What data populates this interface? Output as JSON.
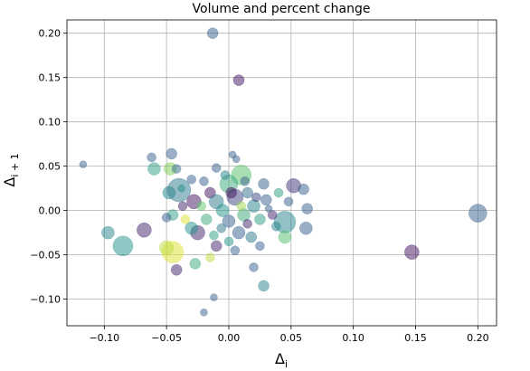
{
  "chart_data": {
    "type": "scatter",
    "title": "Volume and percent change",
    "xlabel_main": "Δ",
    "xlabel_sub": "i",
    "ylabel_main": "Δ",
    "ylabel_sub": "i + 1",
    "xlim": [
      -0.13,
      0.215
    ],
    "ylim": [
      -0.13,
      0.215
    ],
    "xticks": [
      -0.1,
      -0.05,
      0.0,
      0.05,
      0.1,
      0.15,
      0.2
    ],
    "xtick_labels": [
      "−0.10",
      "−0.05",
      "0.00",
      "0.05",
      "0.10",
      "0.15",
      "0.20"
    ],
    "yticks": [
      -0.1,
      -0.05,
      0.0,
      0.05,
      0.1,
      0.15,
      0.2
    ],
    "ytick_labels": [
      "−0.10",
      "−0.05",
      "0.00",
      "0.05",
      "0.10",
      "0.15",
      "0.20"
    ],
    "grid": true,
    "colormap": [
      "#440154",
      "#3b528b",
      "#21918c",
      "#5ec962",
      "#fde725"
    ],
    "points": [
      {
        "x": -0.013,
        "y": 0.2,
        "size": 6,
        "color": 0.3
      },
      {
        "x": 0.008,
        "y": 0.147,
        "size": 6,
        "color": 0.05
      },
      {
        "x": -0.117,
        "y": 0.052,
        "size": 4,
        "color": 0.3
      },
      {
        "x": 0.2,
        "y": -0.003,
        "size": 10,
        "color": 0.3
      },
      {
        "x": 0.147,
        "y": -0.047,
        "size": 8,
        "color": 0.05
      },
      {
        "x": -0.085,
        "y": -0.04,
        "size": 11,
        "color": 0.5
      },
      {
        "x": -0.097,
        "y": -0.025,
        "size": 7,
        "color": 0.45
      },
      {
        "x": -0.068,
        "y": -0.022,
        "size": 8,
        "color": 0.1
      },
      {
        "x": -0.04,
        "y": 0.023,
        "size": 13,
        "color": 0.4
      },
      {
        "x": -0.045,
        "y": -0.047,
        "size": 12,
        "color": 0.95
      },
      {
        "x": -0.05,
        "y": -0.042,
        "size": 8,
        "color": 0.9
      },
      {
        "x": -0.042,
        "y": -0.067,
        "size": 6,
        "color": 0.1
      },
      {
        "x": -0.027,
        "y": -0.06,
        "size": 6,
        "color": 0.6
      },
      {
        "x": -0.015,
        "y": -0.053,
        "size": 5,
        "color": 0.9
      },
      {
        "x": -0.012,
        "y": -0.098,
        "size": 4,
        "color": 0.3
      },
      {
        "x": -0.02,
        "y": -0.115,
        "size": 4,
        "color": 0.3
      },
      {
        "x": 0.028,
        "y": -0.085,
        "size": 6,
        "color": 0.45
      },
      {
        "x": 0.02,
        "y": -0.064,
        "size": 5,
        "color": 0.3
      },
      {
        "x": -0.062,
        "y": 0.06,
        "size": 5,
        "color": 0.3
      },
      {
        "x": -0.06,
        "y": 0.047,
        "size": 7,
        "color": 0.55
      },
      {
        "x": -0.047,
        "y": 0.047,
        "size": 7,
        "color": 0.8
      },
      {
        "x": -0.046,
        "y": 0.064,
        "size": 6,
        "color": 0.3
      },
      {
        "x": -0.042,
        "y": 0.047,
        "size": 5,
        "color": 0.35
      },
      {
        "x": 0.003,
        "y": 0.063,
        "size": 4,
        "color": 0.3
      },
      {
        "x": 0.006,
        "y": 0.058,
        "size": 4,
        "color": 0.3
      },
      {
        "x": 0.01,
        "y": 0.04,
        "size": 11,
        "color": 0.7
      },
      {
        "x": 0.0,
        "y": 0.03,
        "size": 10,
        "color": 0.6
      },
      {
        "x": -0.01,
        "y": 0.048,
        "size": 5,
        "color": 0.3
      },
      {
        "x": 0.052,
        "y": 0.028,
        "size": 8,
        "color": 0.15
      },
      {
        "x": 0.06,
        "y": 0.024,
        "size": 6,
        "color": 0.3
      },
      {
        "x": 0.045,
        "y": -0.013,
        "size": 12,
        "color": 0.45
      },
      {
        "x": 0.045,
        "y": -0.03,
        "size": 7,
        "color": 0.7
      },
      {
        "x": 0.062,
        "y": -0.02,
        "size": 7,
        "color": 0.3
      },
      {
        "x": 0.063,
        "y": 0.002,
        "size": 6,
        "color": 0.3
      },
      {
        "x": 0.048,
        "y": 0.01,
        "size": 5,
        "color": 0.3
      },
      {
        "x": -0.028,
        "y": 0.01,
        "size": 8,
        "color": 0.05
      },
      {
        "x": -0.025,
        "y": -0.025,
        "size": 8,
        "color": 0.1
      },
      {
        "x": -0.03,
        "y": -0.02,
        "size": 7,
        "color": 0.5
      },
      {
        "x": -0.045,
        "y": -0.005,
        "size": 6,
        "color": 0.55
      },
      {
        "x": -0.05,
        "y": -0.008,
        "size": 5,
        "color": 0.3
      },
      {
        "x": -0.048,
        "y": 0.02,
        "size": 7,
        "color": 0.45
      },
      {
        "x": -0.037,
        "y": 0.005,
        "size": 5,
        "color": 0.1
      },
      {
        "x": -0.035,
        "y": -0.01,
        "size": 5,
        "color": 0.95
      },
      {
        "x": -0.02,
        "y": 0.033,
        "size": 5,
        "color": 0.3
      },
      {
        "x": -0.015,
        "y": 0.02,
        "size": 6,
        "color": 0.05
      },
      {
        "x": -0.01,
        "y": 0.01,
        "size": 8,
        "color": 0.4
      },
      {
        "x": -0.005,
        "y": 0.0,
        "size": 7,
        "color": 0.5
      },
      {
        "x": 0.0,
        "y": -0.012,
        "size": 7,
        "color": 0.3
      },
      {
        "x": 0.005,
        "y": 0.015,
        "size": 9,
        "color": 0.2
      },
      {
        "x": 0.012,
        "y": -0.005,
        "size": 7,
        "color": 0.6
      },
      {
        "x": 0.015,
        "y": 0.02,
        "size": 6,
        "color": 0.35
      },
      {
        "x": 0.02,
        "y": 0.005,
        "size": 7,
        "color": 0.45
      },
      {
        "x": 0.025,
        "y": -0.01,
        "size": 6,
        "color": 0.55
      },
      {
        "x": 0.03,
        "y": 0.012,
        "size": 6,
        "color": 0.3
      },
      {
        "x": 0.035,
        "y": -0.005,
        "size": 5,
        "color": 0.1
      },
      {
        "x": 0.028,
        "y": 0.03,
        "size": 6,
        "color": 0.3
      },
      {
        "x": 0.018,
        "y": -0.03,
        "size": 6,
        "color": 0.4
      },
      {
        "x": 0.008,
        "y": -0.025,
        "size": 7,
        "color": 0.3
      },
      {
        "x": 0.0,
        "y": -0.035,
        "size": 5,
        "color": 0.5
      },
      {
        "x": -0.01,
        "y": -0.04,
        "size": 6,
        "color": 0.1
      },
      {
        "x": -0.018,
        "y": -0.01,
        "size": 6,
        "color": 0.6
      },
      {
        "x": -0.022,
        "y": 0.005,
        "size": 5,
        "color": 0.75
      },
      {
        "x": 0.01,
        "y": 0.005,
        "size": 5,
        "color": 0.85
      },
      {
        "x": 0.002,
        "y": 0.02,
        "size": 6,
        "color": 0.05
      },
      {
        "x": -0.006,
        "y": -0.02,
        "size": 5,
        "color": 0.4
      },
      {
        "x": 0.022,
        "y": 0.015,
        "size": 5,
        "color": 0.2
      },
      {
        "x": 0.038,
        "y": -0.018,
        "size": 5,
        "color": 0.45
      },
      {
        "x": 0.04,
        "y": 0.02,
        "size": 5,
        "color": 0.55
      },
      {
        "x": 0.032,
        "y": 0.002,
        "size": 4,
        "color": 0.3
      },
      {
        "x": 0.015,
        "y": -0.015,
        "size": 5,
        "color": 0.1
      },
      {
        "x": -0.012,
        "y": -0.028,
        "size": 5,
        "color": 0.55
      },
      {
        "x": -0.003,
        "y": 0.04,
        "size": 5,
        "color": 0.45
      },
      {
        "x": 0.013,
        "y": 0.033,
        "size": 5,
        "color": 0.3
      },
      {
        "x": -0.03,
        "y": 0.035,
        "size": 5,
        "color": 0.3
      },
      {
        "x": -0.038,
        "y": 0.025,
        "size": 4,
        "color": 0.5
      },
      {
        "x": 0.025,
        "y": -0.04,
        "size": 5,
        "color": 0.3
      },
      {
        "x": 0.005,
        "y": -0.045,
        "size": 5,
        "color": 0.3
      }
    ]
  }
}
